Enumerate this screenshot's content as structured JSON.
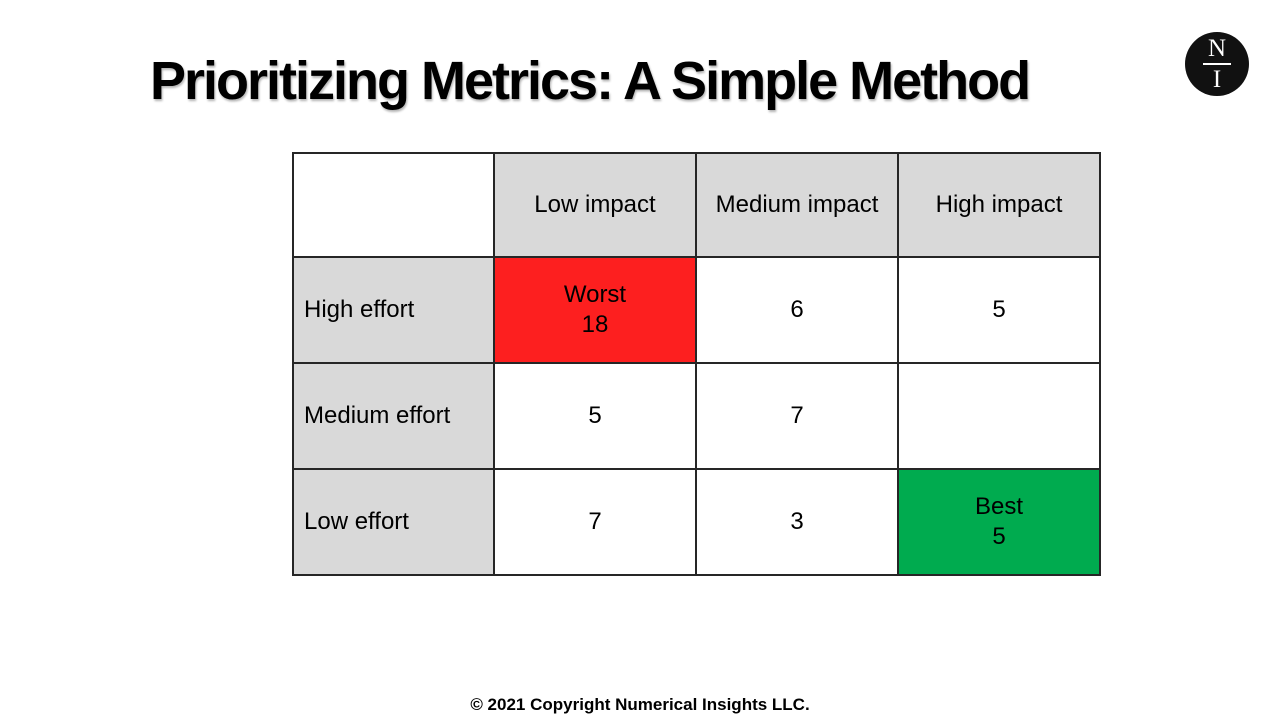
{
  "title": "Prioritizing Metrics: A Simple Method",
  "logo": {
    "name": "numerical-insights-logo",
    "top_letter": "N",
    "bottom_letter": "I"
  },
  "matrix": {
    "col_headers": [
      "Low impact",
      "Medium impact",
      "High impact"
    ],
    "row_headers": [
      "High effort",
      "Medium effort",
      "Low effort"
    ],
    "cells": [
      [
        {
          "label": "Worst",
          "value": "18"
        },
        {
          "value": "6"
        },
        {
          "value": "5"
        }
      ],
      [
        {
          "value": "5"
        },
        {
          "value": "7"
        },
        {
          "value": ""
        }
      ],
      [
        {
          "value": "7"
        },
        {
          "value": "3"
        },
        {
          "label": "Best",
          "value": "5"
        }
      ]
    ]
  },
  "footer": "© 2021 Copyright Numerical Insights LLC.",
  "colors": {
    "header_bg": "#d9d9d9",
    "worst_bg": "#fd1f1f",
    "best_bg": "#00ab4f",
    "border": "#262626",
    "logo_bg": "#111111"
  }
}
